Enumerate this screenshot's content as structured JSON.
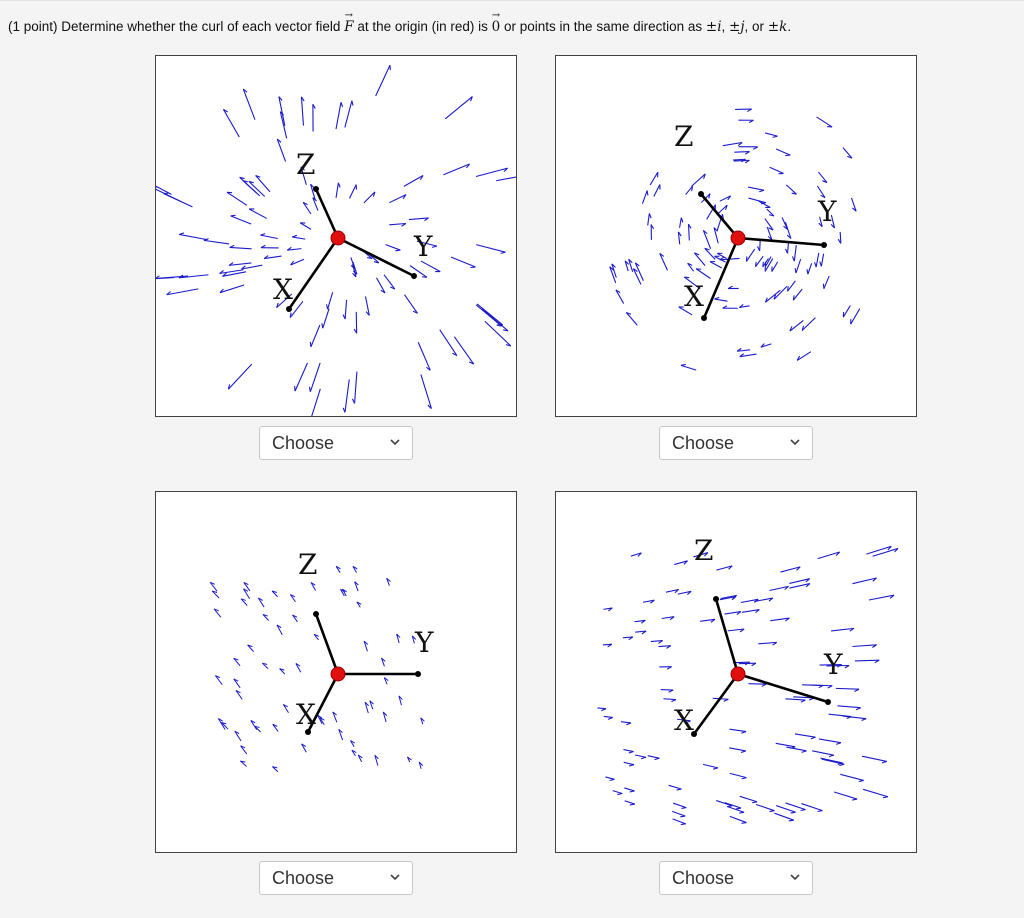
{
  "question": {
    "prefix": "(1 point) Determine whether the curl of each vector field",
    "F_symbol": "F",
    "middle": "at the origin (in red) is",
    "zero_symbol": "0",
    "or_points": "or points in the same direction as",
    "pm_i": "±i",
    "pm_j": "±j",
    "or": ", or",
    "pm_k": "±k",
    "end": "."
  },
  "axis_labels": {
    "x": "X",
    "y": "Y",
    "z": "Z"
  },
  "dropdowns": [
    {
      "selected": "Choose"
    },
    {
      "selected": "Choose"
    },
    {
      "selected": "Choose"
    },
    {
      "selected": "Choose"
    }
  ],
  "colors": {
    "arrow": "#1a1acc",
    "origin": "#e01010",
    "axis": "#000000"
  },
  "icons": {
    "dropdown": "chevron-down-icon"
  }
}
